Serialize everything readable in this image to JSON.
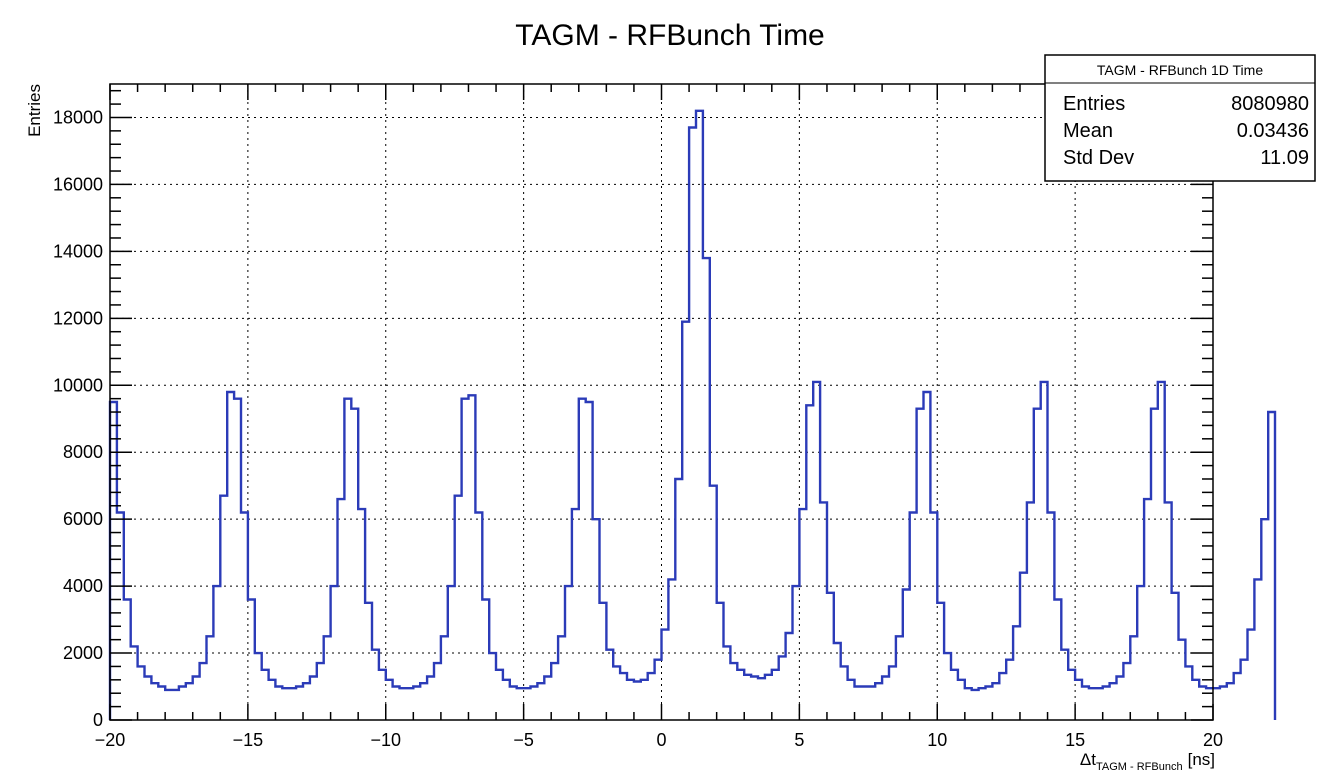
{
  "chart_data": {
    "type": "histogram",
    "title": "TAGM - RFBunch Time",
    "xlabel_main": "Δt",
    "xlabel_sub": "TAGM - RFBunch",
    "xlabel_unit": "[ns]",
    "ylabel": "Entries",
    "xlim": [
      -20,
      20
    ],
    "ylim": [
      0,
      19000
    ],
    "grid": true,
    "bin_width": 0.25,
    "x_ticks": [
      -20,
      -15,
      -10,
      -5,
      0,
      5,
      10,
      15,
      20
    ],
    "x_tick_labels": [
      "−20",
      "−15",
      "−10",
      "−5",
      "0",
      "5",
      "10",
      "15",
      "20"
    ],
    "y_ticks": [
      0,
      2000,
      4000,
      6000,
      8000,
      10000,
      12000,
      14000,
      16000,
      18000
    ],
    "y_tick_labels": [
      "0",
      "2000",
      "4000",
      "6000",
      "8000",
      "10000",
      "12000",
      "14000",
      "16000",
      "18000"
    ],
    "line_color": "#2b3bb8",
    "series": [
      {
        "values": [
          9500,
          6200,
          3600,
          2200,
          1600,
          1300,
          1100,
          1000,
          900,
          900,
          1000,
          1100,
          1300,
          1700,
          2500,
          4000,
          6700,
          9800,
          9600,
          6200,
          3600,
          2000,
          1500,
          1200,
          1000,
          950,
          950,
          1000,
          1100,
          1300,
          1700,
          2500,
          4000,
          6600,
          9600,
          9300,
          6300,
          3500,
          2100,
          1500,
          1200,
          1000,
          950,
          950,
          1000,
          1100,
          1300,
          1700,
          2500,
          4000,
          6700,
          9600,
          9700,
          6200,
          3600,
          2000,
          1500,
          1200,
          1000,
          950,
          950,
          1000,
          1100,
          1300,
          1700,
          2500,
          4000,
          6300,
          9600,
          9500,
          6000,
          3500,
          2100,
          1600,
          1400,
          1200,
          1150,
          1200,
          1400,
          1800,
          2700,
          4200,
          7200,
          11900,
          17700,
          18200,
          13800,
          7000,
          3500,
          2200,
          1700,
          1500,
          1350,
          1300,
          1250,
          1350,
          1500,
          1900,
          2600,
          4000,
          6300,
          9400,
          10100,
          6500,
          3800,
          2300,
          1600,
          1200,
          1000,
          1000,
          1000,
          1100,
          1300,
          1600,
          2500,
          3900,
          6200,
          9300,
          9800,
          6200,
          3500,
          2000,
          1500,
          1200,
          950,
          900,
          950,
          1000,
          1100,
          1400,
          1800,
          2800,
          4400,
          6500,
          9300,
          10100,
          6200,
          3600,
          2100,
          1500,
          1200,
          1000,
          950,
          950,
          1000,
          1100,
          1300,
          1700,
          2500,
          4000,
          6600,
          9300,
          10100,
          6500,
          3800,
          2400,
          1600,
          1200,
          1000,
          950,
          950,
          1000,
          1100,
          1400,
          1800,
          2700,
          4200,
          6000,
          9200
        ]
      }
    ]
  },
  "stats_box": {
    "title": "TAGM - RFBunch 1D Time",
    "rows": [
      {
        "label": "Entries",
        "value": "8080980"
      },
      {
        "label": "Mean",
        "value": "0.03436"
      },
      {
        "label": "Std Dev",
        "value": "11.09"
      }
    ]
  }
}
